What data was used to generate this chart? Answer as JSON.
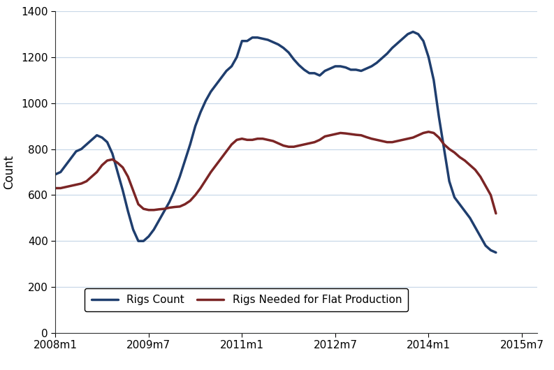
{
  "title": "",
  "ylabel": "Count",
  "xlabel": "",
  "ylim": [
    0,
    1400
  ],
  "yticks": [
    0,
    200,
    400,
    600,
    800,
    1000,
    1200,
    1400
  ],
  "xtick_labels": [
    "2008m1",
    "2009m7",
    "2011m1",
    "2012m7",
    "2014m1",
    "2015m7"
  ],
  "line_color_rigs": "#1f3e6e",
  "line_color_flat": "#7b2525",
  "line_width": 2.5,
  "background_color": "#ffffff",
  "grid_color": "#c8d8e8",
  "legend_labels": [
    "Rigs Count",
    "Rigs Needed for Flat Production"
  ],
  "rigs_count": [
    690,
    700,
    730,
    760,
    790,
    800,
    820,
    840,
    860,
    850,
    830,
    780,
    700,
    620,
    530,
    450,
    400,
    400,
    420,
    450,
    490,
    530,
    570,
    620,
    680,
    750,
    820,
    900,
    960,
    1010,
    1050,
    1080,
    1110,
    1140,
    1160,
    1200,
    1270,
    1270,
    1285,
    1285,
    1280,
    1275,
    1265,
    1255,
    1240,
    1220,
    1190,
    1165,
    1145,
    1130,
    1130,
    1120,
    1140,
    1150,
    1160,
    1160,
    1155,
    1145,
    1145,
    1140,
    1150,
    1160,
    1175,
    1195,
    1215,
    1240,
    1260,
    1280,
    1300,
    1310,
    1300,
    1270,
    1200,
    1100,
    940,
    800,
    660,
    590,
    560,
    530,
    500,
    460,
    420,
    380,
    360,
    350
  ],
  "rigs_flat": [
    630,
    630,
    635,
    640,
    645,
    650,
    660,
    680,
    700,
    730,
    750,
    755,
    740,
    720,
    680,
    620,
    560,
    540,
    535,
    535,
    538,
    540,
    545,
    548,
    550,
    560,
    575,
    600,
    630,
    665,
    700,
    730,
    760,
    790,
    820,
    840,
    845,
    840,
    840,
    845,
    845,
    840,
    835,
    825,
    815,
    810,
    810,
    815,
    820,
    825,
    830,
    840,
    855,
    860,
    865,
    870,
    868,
    865,
    862,
    860,
    852,
    845,
    840,
    835,
    830,
    830,
    835,
    840,
    845,
    850,
    860,
    870,
    875,
    870,
    850,
    820,
    800,
    785,
    765,
    750,
    730,
    710,
    680,
    640,
    600,
    520
  ],
  "n_months": 86,
  "month_start": 0,
  "xtick_positions": [
    0,
    18,
    36,
    54,
    72,
    90
  ]
}
